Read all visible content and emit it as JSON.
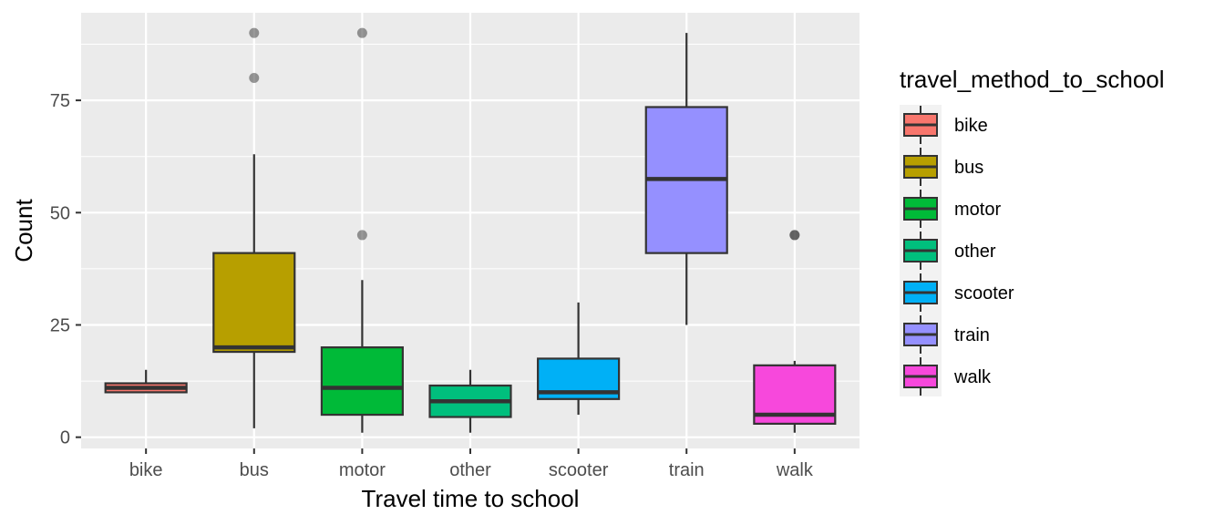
{
  "chart_data": {
    "type": "boxplot",
    "xlabel": "Travel time to school",
    "ylabel": "Count",
    "ylim": [
      -2.5,
      94.5
    ],
    "yticks": [
      0,
      25,
      50,
      75
    ],
    "grid": true,
    "legend_position": "right",
    "legend_title": "travel_method_to_school",
    "categories": [
      "bike",
      "bus",
      "motor",
      "other",
      "scooter",
      "train",
      "walk"
    ],
    "boxes": [
      {
        "name": "bike",
        "color": "#F8766D",
        "min": 10,
        "q1": 10,
        "median": 11,
        "q3": 12,
        "max": 15,
        "outliers": []
      },
      {
        "name": "bus",
        "color": "#B79F00",
        "min": 2,
        "q1": 19,
        "median": 20,
        "q3": 41,
        "max": 63,
        "outliers": [
          80,
          90
        ]
      },
      {
        "name": "motor",
        "color": "#00BA38",
        "min": 1,
        "q1": 5,
        "median": 11,
        "q3": 20,
        "max": 35,
        "outliers": [
          45,
          90
        ]
      },
      {
        "name": "other",
        "color": "#00BF7D",
        "min": 1,
        "q1": 4.5,
        "median": 8,
        "q3": 11.5,
        "max": 15,
        "outliers": []
      },
      {
        "name": "scooter",
        "color": "#00B0F6",
        "min": 5,
        "q1": 8.5,
        "median": 10,
        "q3": 17.5,
        "max": 30,
        "outliers": []
      },
      {
        "name": "train",
        "color": "#9590FF",
        "min": 25,
        "q1": 41,
        "median": 57.5,
        "q3": 73.5,
        "max": 90,
        "outliers": []
      },
      {
        "name": "walk",
        "color": "#F748DC",
        "min": 1,
        "q1": 3,
        "median": 5,
        "q3": 16,
        "max": 17,
        "outliers": [
          45,
          45
        ]
      }
    ]
  }
}
